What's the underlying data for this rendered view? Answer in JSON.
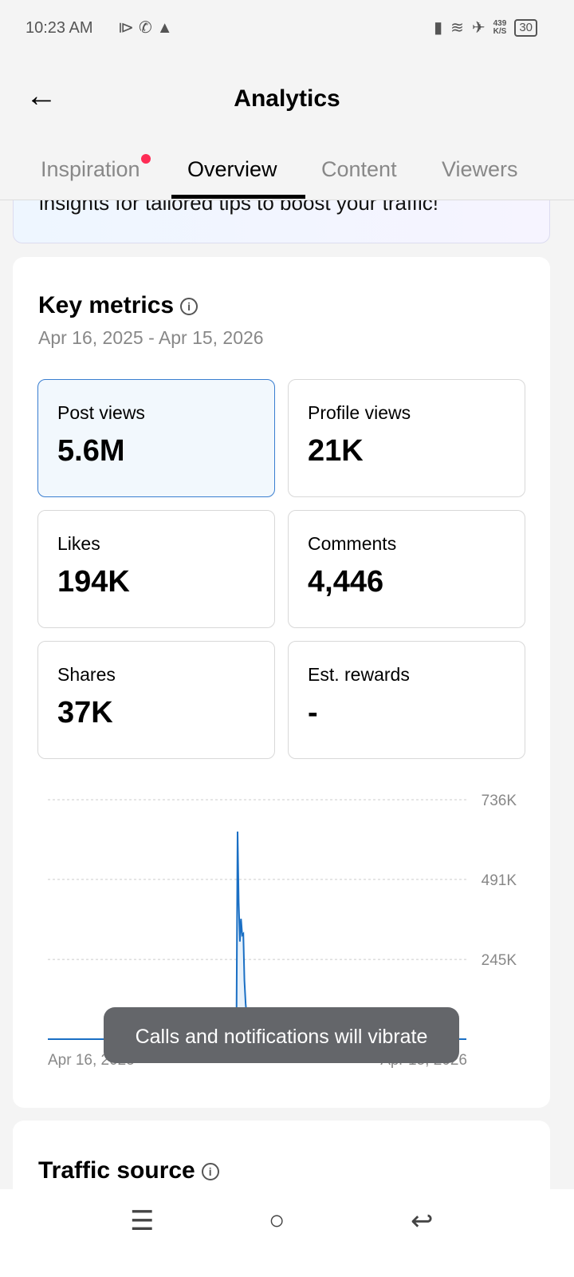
{
  "status": {
    "time": "10:23 AM",
    "speed": "439",
    "speed_unit": "K/S",
    "battery": "30"
  },
  "header": {
    "title": "Analytics"
  },
  "tabs": [
    {
      "label": "Inspiration",
      "badge": true
    },
    {
      "label": "Overview",
      "active": true
    },
    {
      "label": "Content"
    },
    {
      "label": "Viewers"
    }
  ],
  "banner": {
    "text": "insights for tailored tips to boost your traffic!"
  },
  "key_metrics": {
    "title": "Key metrics",
    "range": "Apr 16, 2025 - Apr 15, 2026",
    "metrics": [
      {
        "label": "Post views",
        "value": "5.6M"
      },
      {
        "label": "Profile views",
        "value": "21K"
      },
      {
        "label": "Likes",
        "value": "194K"
      },
      {
        "label": "Comments",
        "value": "4,446"
      },
      {
        "label": "Shares",
        "value": "37K"
      },
      {
        "label": "Est. rewards",
        "value": "-"
      }
    ]
  },
  "chart_data": {
    "type": "area",
    "series_name": "Post views",
    "ylim": [
      0,
      736000
    ],
    "yticks": [
      "736K",
      "491K",
      "245K"
    ],
    "ytick_values": [
      736000,
      491000,
      245000
    ],
    "xticks": [
      "Apr 16, 2025",
      "Apr 15, 2026"
    ],
    "xlim": [
      0,
      364
    ],
    "points": [
      [
        0,
        0
      ],
      [
        163,
        0
      ],
      [
        164,
        0
      ],
      [
        165,
        638000
      ],
      [
        166,
        420000
      ],
      [
        167,
        300000
      ],
      [
        168,
        370000
      ],
      [
        169,
        320000
      ],
      [
        170,
        324000
      ],
      [
        171,
        180000
      ],
      [
        172,
        110000
      ],
      [
        173,
        70000
      ],
      [
        174,
        60000
      ],
      [
        175,
        40000
      ],
      [
        176,
        50000
      ],
      [
        177,
        25000
      ],
      [
        178,
        35000
      ],
      [
        179,
        15000
      ],
      [
        180,
        28000
      ],
      [
        181,
        12000
      ],
      [
        182,
        22000
      ],
      [
        184,
        8000
      ],
      [
        186,
        14000
      ],
      [
        188,
        4000
      ],
      [
        192,
        8000
      ],
      [
        196,
        3000
      ],
      [
        200,
        9000
      ],
      [
        204,
        2000
      ],
      [
        210,
        5000
      ],
      [
        220,
        1000
      ],
      [
        240,
        1500
      ],
      [
        260,
        500
      ],
      [
        300,
        800
      ],
      [
        364,
        0
      ]
    ]
  },
  "toast": {
    "text": "Calls and notifications will vibrate"
  },
  "traffic_source": {
    "title": "Traffic source"
  }
}
